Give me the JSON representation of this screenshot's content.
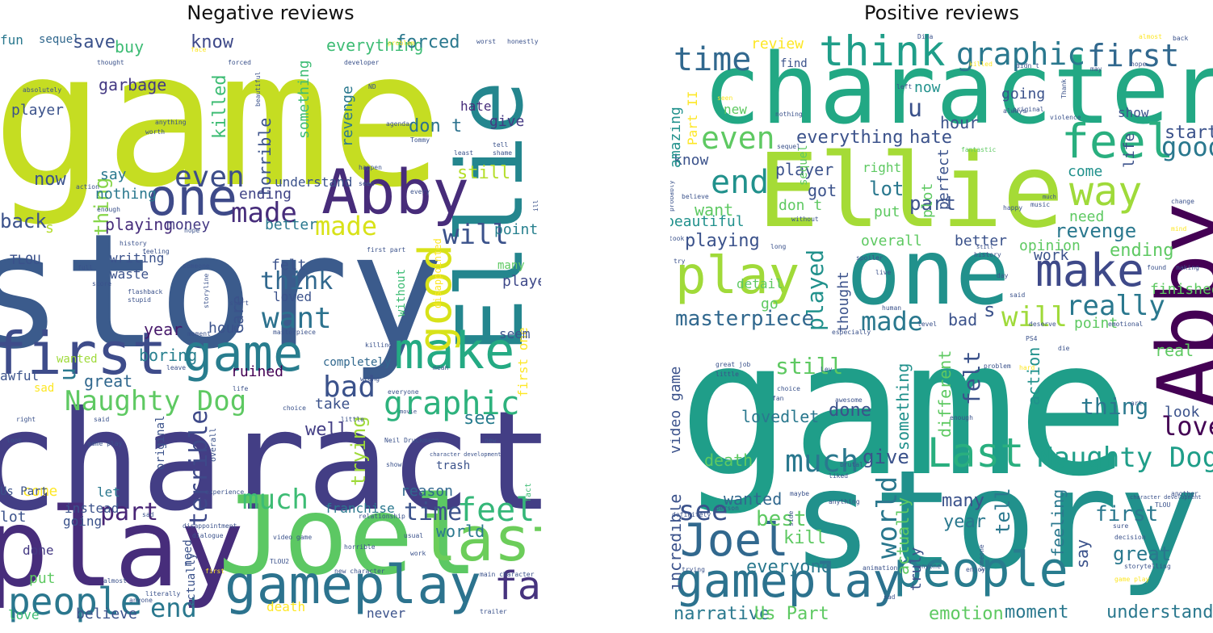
{
  "titles": {
    "negative": "Negative reviews",
    "positive": "Positive reviews"
  },
  "negative_words": [
    "game",
    "story",
    "character",
    "play",
    "Joel",
    "Ellie",
    "Abby",
    "first",
    "gameplay",
    "last",
    "make",
    "one",
    "good",
    "people",
    "game",
    "Naughty Dog",
    "graphic",
    "feel",
    "bad",
    "want",
    "made",
    "even",
    "will",
    "made",
    "think",
    "part",
    "end",
    "much",
    "time",
    "fan",
    "u",
    "thing",
    "playing",
    "money",
    "year",
    "hour",
    "ruined",
    "terrible",
    "great",
    "boring",
    "well",
    "trying",
    "see",
    "reason",
    "world",
    "played",
    "still",
    "point",
    "don t",
    "give",
    "hate",
    "horrible",
    "killed",
    "ending",
    "felt",
    "care",
    "better",
    "loved",
    "garbage",
    "nothing",
    "now",
    "say",
    "buy",
    "know",
    "everything",
    "forced",
    "revenge",
    "something",
    "player",
    "writing",
    "waste",
    "TLOU",
    "awful",
    "wanted",
    "fun",
    "sequel",
    "save",
    "s",
    "take",
    "let",
    "franchise",
    "instead",
    "come",
    "going",
    "done",
    "put",
    "love",
    "believe",
    "death",
    "never",
    "completely",
    "first one",
    "seem",
    "many",
    "trash",
    "without",
    "disappointed",
    "original",
    "understand",
    "need",
    "actually",
    "first",
    "new character",
    "literally",
    "Us Part",
    "lot",
    "new",
    "fact",
    "killing",
    "mean",
    "horrible",
    "main character",
    "video game",
    "relationship",
    "sad",
    "overall",
    "look",
    "game play",
    "right",
    "developer",
    "problem",
    "honestly",
    "worst",
    "thought",
    "forced",
    "face",
    "worth",
    "anything",
    "agenda",
    "Tommy",
    "tell",
    "shame",
    "least",
    "happen",
    "every",
    "seen",
    "enough",
    "history",
    "feeling",
    "hope",
    "score",
    "masterpiece",
    "storyline",
    "flashback",
    "stupid",
    "start",
    "someone",
    "moment",
    "leave",
    "wrong",
    "life",
    "choice",
    "disappointment",
    "dialogue",
    "experience",
    "said",
    "almost",
    "anyone",
    "everyone",
    "little",
    "Neil Druckmann",
    "show",
    "work",
    "TLOU2",
    "usual",
    "sad",
    "full",
    "back",
    "first part",
    "ill",
    "ND",
    "beautiful",
    "absolutely",
    "action",
    "trailer",
    "movie",
    "character development"
  ],
  "positive_words": [
    "game",
    "story",
    "character",
    "Ellie",
    "one",
    "Abby",
    "play",
    "think",
    "feel",
    "Last",
    "Naughty Dog",
    "people",
    "gameplay",
    "Joel",
    "make",
    "time",
    "graphic",
    "first",
    "way",
    "even",
    "end",
    "much",
    "really",
    "will",
    "made",
    "played",
    "masterpiece",
    "still",
    "lovedlet",
    "death",
    "see",
    "best",
    "wanted",
    "kill",
    "everyone",
    "world",
    "year",
    "many",
    "tell",
    "feeling",
    "say",
    "great",
    "first",
    "moment",
    "emotion",
    "narrative",
    "Us Part",
    "understand",
    "thing",
    "love",
    "look",
    "revenge",
    "ending",
    "point",
    "opinion",
    "work",
    "better",
    "part",
    "lot",
    "put",
    "right",
    "got",
    "player",
    "don t",
    "want",
    "know",
    "beautiful",
    "playing",
    "amazing",
    "Part II",
    "u",
    "hour",
    "now",
    "going",
    "hate",
    "everything",
    "sequel",
    "plot",
    "perfect",
    "life",
    "come",
    "need",
    "good",
    "start",
    "show",
    "finished",
    "real",
    "action",
    "felt",
    "different",
    "done",
    "give",
    "something",
    "much",
    "actually",
    "truly",
    "incredible",
    "video game",
    "detail",
    "go",
    "overall",
    "review",
    "find",
    "new",
    "bad",
    "s",
    "thought",
    "still",
    "sequel",
    "fantastic",
    "happy",
    "music",
    "spoiler",
    "live",
    "day",
    "said",
    "emotional",
    "especially",
    "level",
    "deserve",
    "PS4",
    "Lev",
    "problem",
    "hard",
    "fan",
    "awesome",
    "choice",
    "enough",
    "brutal",
    "liked",
    "maybe",
    "side",
    "anything",
    "animation",
    "anyone",
    "enjoy",
    "someone",
    "decision",
    "sure",
    "storytelling",
    "game play",
    "TLOU",
    "art",
    "another",
    "making",
    "found",
    "change",
    "mind",
    "great job",
    "little",
    "trying",
    "definitely",
    "person",
    "try",
    "believe",
    "probably",
    "took",
    "long",
    "without",
    "nothing",
    "left",
    "didn t",
    "killed",
    "almost",
    "back",
    "hope",
    "original",
    "violence",
    "may",
    "Dina",
    "seen",
    "Thank",
    "human",
    "always",
    "history",
    "sad",
    "die",
    "character development"
  ]
}
